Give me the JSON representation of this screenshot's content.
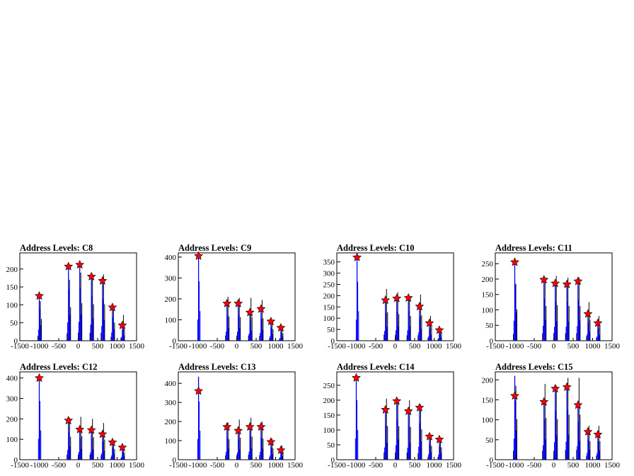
{
  "chart_data": [
    {
      "type": "bar",
      "title": "Address Levels: C8",
      "xlim": [
        -1500,
        1500
      ],
      "ylim": [
        0,
        245
      ],
      "yticks": [
        0,
        50,
        100,
        150,
        200
      ],
      "xticks": [
        -1500,
        -1000,
        -500,
        0,
        500,
        1000,
        1500
      ],
      "peaks": [
        {
          "x": -1000,
          "black": 110,
          "blue": 125
        },
        {
          "x": -250,
          "black": 170,
          "blue": 205
        },
        {
          "x": 40,
          "black": 190,
          "blue": 210
        },
        {
          "x": 340,
          "black": 185,
          "blue": 178
        },
        {
          "x": 625,
          "black": 185,
          "blue": 165
        },
        {
          "x": 880,
          "black": 92,
          "blue": 92
        },
        {
          "x": 1135,
          "black": 72,
          "blue": 42
        }
      ],
      "markers": [
        {
          "x": -1000,
          "y": 125
        },
        {
          "x": -250,
          "y": 207
        },
        {
          "x": 40,
          "y": 212
        },
        {
          "x": 340,
          "y": 179
        },
        {
          "x": 625,
          "y": 167
        },
        {
          "x": 880,
          "y": 93
        },
        {
          "x": 1135,
          "y": 43
        }
      ]
    },
    {
      "type": "bar",
      "title": "Address Levels: C9",
      "xlim": [
        -1500,
        1500
      ],
      "ylim": [
        0,
        420
      ],
      "yticks": [
        0,
        100,
        200,
        300,
        400
      ],
      "xticks": [
        -1500,
        -1000,
        -500,
        0,
        500,
        1000,
        1500
      ],
      "peaks": [
        {
          "x": -980,
          "black": 0,
          "blue": 405
        },
        {
          "x": -250,
          "black": 210,
          "blue": 175
        },
        {
          "x": 40,
          "black": 205,
          "blue": 175
        },
        {
          "x": 340,
          "black": 205,
          "blue": 135
        },
        {
          "x": 625,
          "black": 195,
          "blue": 150
        },
        {
          "x": 880,
          "black": 100,
          "blue": 90
        },
        {
          "x": 1135,
          "black": 65,
          "blue": 55
        }
      ],
      "markers": [
        {
          "x": -980,
          "y": 405
        },
        {
          "x": -250,
          "y": 178
        },
        {
          "x": 40,
          "y": 178
        },
        {
          "x": 340,
          "y": 135
        },
        {
          "x": 625,
          "y": 152
        },
        {
          "x": 880,
          "y": 92
        },
        {
          "x": 1135,
          "y": 62
        }
      ]
    },
    {
      "type": "bar",
      "title": "Address Levels: C10",
      "xlim": [
        -1500,
        1500
      ],
      "ylim": [
        0,
        390
      ],
      "yticks": [
        0,
        50,
        100,
        150,
        200,
        250,
        300,
        350
      ],
      "xticks": [
        -1500,
        -1000,
        -500,
        0,
        500,
        1000,
        1500
      ],
      "peaks": [
        {
          "x": -980,
          "black": 0,
          "blue": 375
        },
        {
          "x": -250,
          "black": 230,
          "blue": 175
        },
        {
          "x": 40,
          "black": 215,
          "blue": 185
        },
        {
          "x": 340,
          "black": 200,
          "blue": 185
        },
        {
          "x": 625,
          "black": 205,
          "blue": 150
        },
        {
          "x": 880,
          "black": 110,
          "blue": 75
        },
        {
          "x": 1135,
          "black": 55,
          "blue": 45
        }
      ],
      "markers": [
        {
          "x": -980,
          "y": 370
        },
        {
          "x": -250,
          "y": 180
        },
        {
          "x": 40,
          "y": 188
        },
        {
          "x": 340,
          "y": 190
        },
        {
          "x": 625,
          "y": 152
        },
        {
          "x": 880,
          "y": 78
        },
        {
          "x": 1135,
          "y": 47
        }
      ]
    },
    {
      "type": "bar",
      "title": "Address Levels: C11",
      "xlim": [
        -1500,
        1500
      ],
      "ylim": [
        0,
        285
      ],
      "yticks": [
        0,
        50,
        100,
        150,
        200,
        250
      ],
      "xticks": [
        -1500,
        -1000,
        -500,
        0,
        500,
        1000,
        1500
      ],
      "peaks": [
        {
          "x": -1000,
          "black": 185,
          "blue": 260
        },
        {
          "x": -250,
          "black": 205,
          "blue": 195
        },
        {
          "x": 40,
          "black": 210,
          "blue": 180
        },
        {
          "x": 340,
          "black": 205,
          "blue": 180
        },
        {
          "x": 625,
          "black": 205,
          "blue": 190
        },
        {
          "x": 880,
          "black": 125,
          "blue": 85
        },
        {
          "x": 1135,
          "black": 80,
          "blue": 55
        }
      ],
      "markers": [
        {
          "x": -1000,
          "y": 255
        },
        {
          "x": -250,
          "y": 198
        },
        {
          "x": 40,
          "y": 186
        },
        {
          "x": 340,
          "y": 183
        },
        {
          "x": 625,
          "y": 193
        },
        {
          "x": 880,
          "y": 87
        },
        {
          "x": 1135,
          "y": 57
        }
      ]
    },
    {
      "type": "bar",
      "title": "Address Levels: C12",
      "xlim": [
        -1500,
        1500
      ],
      "ylim": [
        0,
        430
      ],
      "yticks": [
        0,
        100,
        200,
        300,
        400
      ],
      "xticks": [
        -1500,
        -1000,
        -500,
        0,
        500,
        1000,
        1500
      ],
      "peaks": [
        {
          "x": -1000,
          "black": 0,
          "blue": 410
        },
        {
          "x": -250,
          "black": 205,
          "blue": 190
        },
        {
          "x": 40,
          "black": 210,
          "blue": 150
        },
        {
          "x": 340,
          "black": 200,
          "blue": 145
        },
        {
          "x": 625,
          "black": 180,
          "blue": 125
        },
        {
          "x": 880,
          "black": 95,
          "blue": 85
        },
        {
          "x": 1135,
          "black": 65,
          "blue": 55
        }
      ],
      "markers": [
        {
          "x": -1000,
          "y": 400
        },
        {
          "x": -250,
          "y": 192
        },
        {
          "x": 40,
          "y": 148
        },
        {
          "x": 340,
          "y": 145
        },
        {
          "x": 625,
          "y": 125
        },
        {
          "x": 880,
          "y": 85
        },
        {
          "x": 1135,
          "y": 60
        }
      ]
    },
    {
      "type": "bar",
      "title": "Address Levels: C13",
      "xlim": [
        -1500,
        1500
      ],
      "ylim": [
        0,
        460
      ],
      "yticks": [
        0,
        100,
        200,
        300,
        400
      ],
      "xticks": [
        -1500,
        -1000,
        -500,
        0,
        500,
        1000,
        1500
      ],
      "peaks": [
        {
          "x": -980,
          "black": 0,
          "blue": 435
        },
        {
          "x": -250,
          "black": 195,
          "blue": 165
        },
        {
          "x": 40,
          "black": 210,
          "blue": 150
        },
        {
          "x": 340,
          "black": 220,
          "blue": 170
        },
        {
          "x": 625,
          "black": 200,
          "blue": 165
        },
        {
          "x": 880,
          "black": 110,
          "blue": 90
        },
        {
          "x": 1135,
          "black": 75,
          "blue": 55
        }
      ],
      "markers": [
        {
          "x": -980,
          "y": 360
        },
        {
          "x": -250,
          "y": 172
        },
        {
          "x": 40,
          "y": 152
        },
        {
          "x": 340,
          "y": 172
        },
        {
          "x": 625,
          "y": 172
        },
        {
          "x": 880,
          "y": 93
        },
        {
          "x": 1135,
          "y": 50
        }
      ]
    },
    {
      "type": "bar",
      "title": "Address Levels: C14",
      "xlim": [
        -1500,
        1500
      ],
      "ylim": [
        0,
        295
      ],
      "yticks": [
        0,
        50,
        100,
        150,
        200,
        250
      ],
      "xticks": [
        -1500,
        -1000,
        -500,
        0,
        500,
        1000,
        1500
      ],
      "peaks": [
        {
          "x": -1000,
          "black": 0,
          "blue": 285
        },
        {
          "x": -250,
          "black": 205,
          "blue": 165
        },
        {
          "x": 40,
          "black": 205,
          "blue": 195
        },
        {
          "x": 340,
          "black": 200,
          "blue": 160
        },
        {
          "x": 625,
          "black": 185,
          "blue": 175
        },
        {
          "x": 880,
          "black": 85,
          "blue": 75
        },
        {
          "x": 1135,
          "black": 75,
          "blue": 65
        }
      ],
      "markers": [
        {
          "x": -1000,
          "y": 275
        },
        {
          "x": -250,
          "y": 168
        },
        {
          "x": 40,
          "y": 197
        },
        {
          "x": 340,
          "y": 163
        },
        {
          "x": 625,
          "y": 175
        },
        {
          "x": 880,
          "y": 78
        },
        {
          "x": 1135,
          "y": 68
        }
      ]
    },
    {
      "type": "bar",
      "title": "Address Levels: C15",
      "xlim": [
        -1500,
        1500
      ],
      "ylim": [
        0,
        220
      ],
      "yticks": [
        0,
        50,
        100,
        150,
        200
      ],
      "xticks": [
        -1500,
        -1000,
        -500,
        0,
        500,
        1000,
        1500
      ],
      "peaks": [
        {
          "x": -1000,
          "black": 185,
          "blue": 210
        },
        {
          "x": -250,
          "black": 190,
          "blue": 145
        },
        {
          "x": 40,
          "black": 185,
          "blue": 175
        },
        {
          "x": 340,
          "black": 205,
          "blue": 180
        },
        {
          "x": 625,
          "black": 205,
          "blue": 135
        },
        {
          "x": 880,
          "black": 85,
          "blue": 70
        },
        {
          "x": 1135,
          "black": 85,
          "blue": 65
        }
      ],
      "markers": [
        {
          "x": -1000,
          "y": 160
        },
        {
          "x": -250,
          "y": 145
        },
        {
          "x": 40,
          "y": 178
        },
        {
          "x": 340,
          "y": 182
        },
        {
          "x": 625,
          "y": 137
        },
        {
          "x": 880,
          "y": 70
        },
        {
          "x": 1135,
          "y": 63
        }
      ]
    }
  ],
  "colors": {
    "hist_black": "#000000",
    "hist_blue": "#0000ff",
    "marker": "#ff0000",
    "marker_edge": "#000000"
  }
}
